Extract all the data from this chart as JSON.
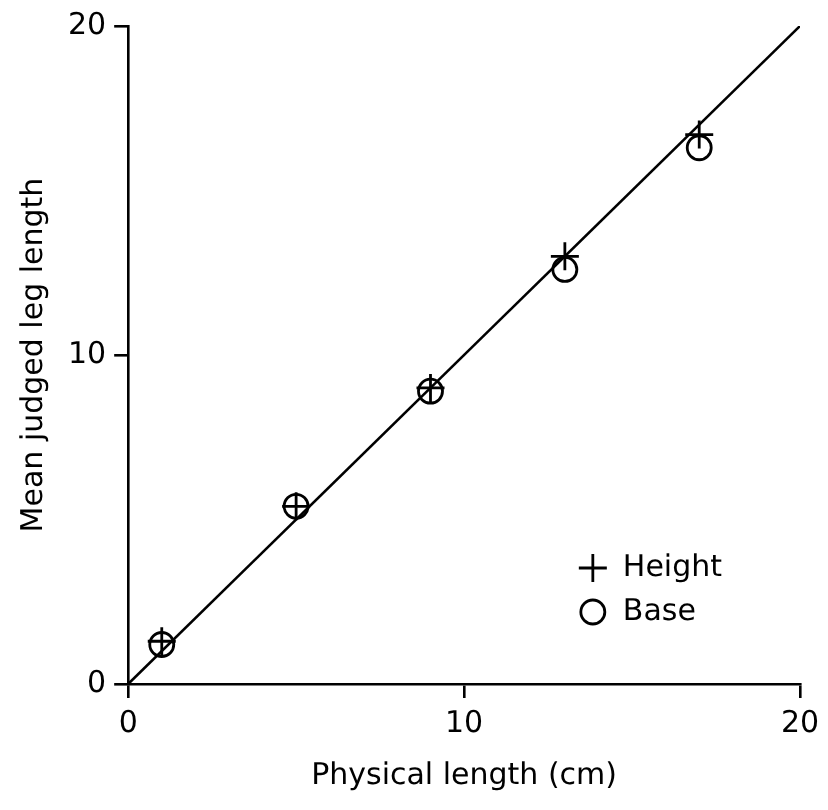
{
  "chart_data": {
    "type": "scatter",
    "xlabel": "Physical length (cm)",
    "ylabel": "Mean judged leg length",
    "xlim": [
      0,
      20
    ],
    "xticks": [
      0,
      10,
      20
    ],
    "ylim": [
      0,
      20
    ],
    "yticks": [
      0,
      10,
      20
    ],
    "grid": false,
    "legend": "bottom right",
    "series": [
      {
        "name": "Height",
        "color": "#000000",
        "marker": "cross",
        "x": [
          1,
          5,
          9,
          13,
          17
        ],
        "values": [
          1.3,
          5.4,
          9.0,
          13.0,
          16.7
        ]
      },
      {
        "name": "Base",
        "color": "#000000",
        "marker": "circle",
        "x": [
          1,
          5,
          9,
          13,
          17
        ],
        "values": [
          1.2,
          5.4,
          8.9,
          12.6,
          16.3
        ]
      },
      {
        "type": "line",
        "color": "#000000",
        "marker": "none",
        "x": [
          0,
          20
        ],
        "values": [
          0,
          20
        ]
      }
    ]
  }
}
